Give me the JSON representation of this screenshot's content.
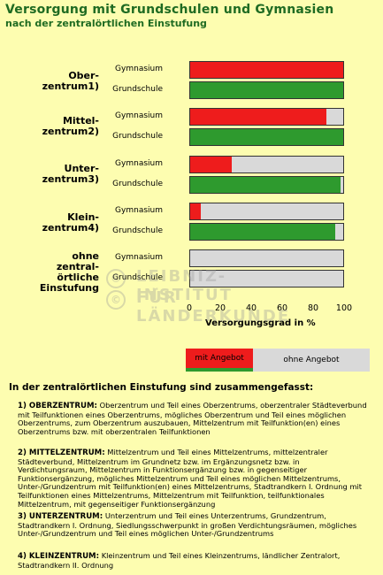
{
  "title": "Versorgung mit Grundschulen und Gymnasien",
  "subtitle": "nach der zentralörtlichen Einstufung",
  "chart_data": {
    "type": "bar",
    "orientation": "horizontal",
    "stacked": true,
    "xlabel": "Versorgungsgrad in %",
    "xlim": [
      0,
      100
    ],
    "ticks": [
      "0",
      "20",
      "40",
      "60",
      "80",
      "100"
    ],
    "groups": [
      {
        "label": "Oberzentrum",
        "sup": "1)",
        "bars": [
          {
            "category": "Gymnasium",
            "mit_angebot": 100,
            "color": "#ee1c1c"
          },
          {
            "category": "Grundschule",
            "mit_angebot": 100,
            "color": "#2e9a2e"
          }
        ]
      },
      {
        "label": "Mittelzentrum",
        "sup": "2)",
        "bars": [
          {
            "category": "Gymnasium",
            "mit_angebot": 89,
            "color": "#ee1c1c"
          },
          {
            "category": "Grundschule",
            "mit_angebot": 100,
            "color": "#2e9a2e"
          }
        ]
      },
      {
        "label": "Unterzentrum",
        "sup": "3)",
        "bars": [
          {
            "category": "Gymnasium",
            "mit_angebot": 27,
            "color": "#ee1c1c"
          },
          {
            "category": "Grundschule",
            "mit_angebot": 98,
            "color": "#2e9a2e"
          }
        ]
      },
      {
        "label": "Kleinzentrum",
        "sup": "4)",
        "bars": [
          {
            "category": "Gymnasium",
            "mit_angebot": 7,
            "color": "#ee1c1c"
          },
          {
            "category": "Grundschule",
            "mit_angebot": 95,
            "color": "#2e9a2e"
          }
        ]
      },
      {
        "label": "ohne zentralörtliche Einstufung",
        "sup": "",
        "bars": [
          {
            "category": "Gymnasium",
            "mit_angebot": 0,
            "color": "#ee1c1c"
          },
          {
            "category": "Grundschule",
            "mit_angebot": 0,
            "color": "#2e9a2e"
          }
        ]
      }
    ],
    "legend": [
      "mit Angebot",
      "ohne Angebot"
    ],
    "colors": {
      "gymnasium": "#ee1c1c",
      "grundschule": "#2e9a2e",
      "ohne_angebot": "#d9d9d9"
    }
  },
  "group_labels": {
    "g1_l1": "Ober-",
    "g1_l2": "zentrum",
    "g2_l1": "Mittel-",
    "g2_l2": "zentrum",
    "g3_l1": "Unter-",
    "g3_l2": "zentrum",
    "g4_l1": "Klein-",
    "g4_l2": "zentrum",
    "g5_l1": "ohne",
    "g5_l2": "zentral-",
    "g5_l3": "örtliche",
    "g5_l4": "Einstufung"
  },
  "watermark": {
    "line1": "LEIBNIZ-INSTITUT",
    "line2": "FÜR LÄNDERKUNDE",
    "symbol": "©"
  },
  "definitions": {
    "title": "In der zentralörtlichen Einstufung sind zusammengefasst:",
    "d1_head": "1) OBERZENTRUM:",
    "d1_text": "Oberzentrum und Teil eines Oberzentrums, oberzentraler Städteverbund mit Teilfunktionen eines Oberzentrums, mögliches Oberzentrum und Teil eines möglichen Oberzentrums, zum Oberzentrum auszubauen, Mittelzentrum mit Teilfunktion(en) eines Oberzentrums bzw. mit oberzentralen Teilfunktionen",
    "d2_head": "2) MITTELZENTRUM:",
    "d2_text": "Mittelzentrum und Teil eines Mittelzentrums, mittelzentraler Städteverbund, Mittelzentrum im Grundnetz bzw. im Ergänzungsnetz bzw. in Verdichtungsraum, Mittelzentrum in Funktionsergänzung bzw. in gegenseitiger Funktionsergänzung, mögliches Mittelzentrum und Teil eines möglichen Mittelzentrums, Unter-/Grundzentrum mit Teilfunktion(en) eines Mittelzentrums, Stadtrandkern I. Ordnung mit Teilfunktionen eines Mittelzentrums, Mittelzentrum mit Teilfunktion, teilfunktionales Mittelzentrum, mit gegenseitiger Funktionsergänzung",
    "d3_head": "3) UNTERZENTRUM:",
    "d3_text": "Unterzentrum und Teil eines Unterzentrums, Grundzentrum, Stadtrandkern I. Ordnung, Siedlungsschwerpunkt in großen Verdichtungsräumen, mögliches Unter-/Grundzentrum und Teil eines möglichen Unter-/Grundzentrums",
    "d4_head": "4) KLEINZENTRUM:",
    "d4_text": "Kleinzentrum und Teil eines Kleinzentrums, ländlicher Zentralort, Stadtrandkern II. Ordnung"
  }
}
